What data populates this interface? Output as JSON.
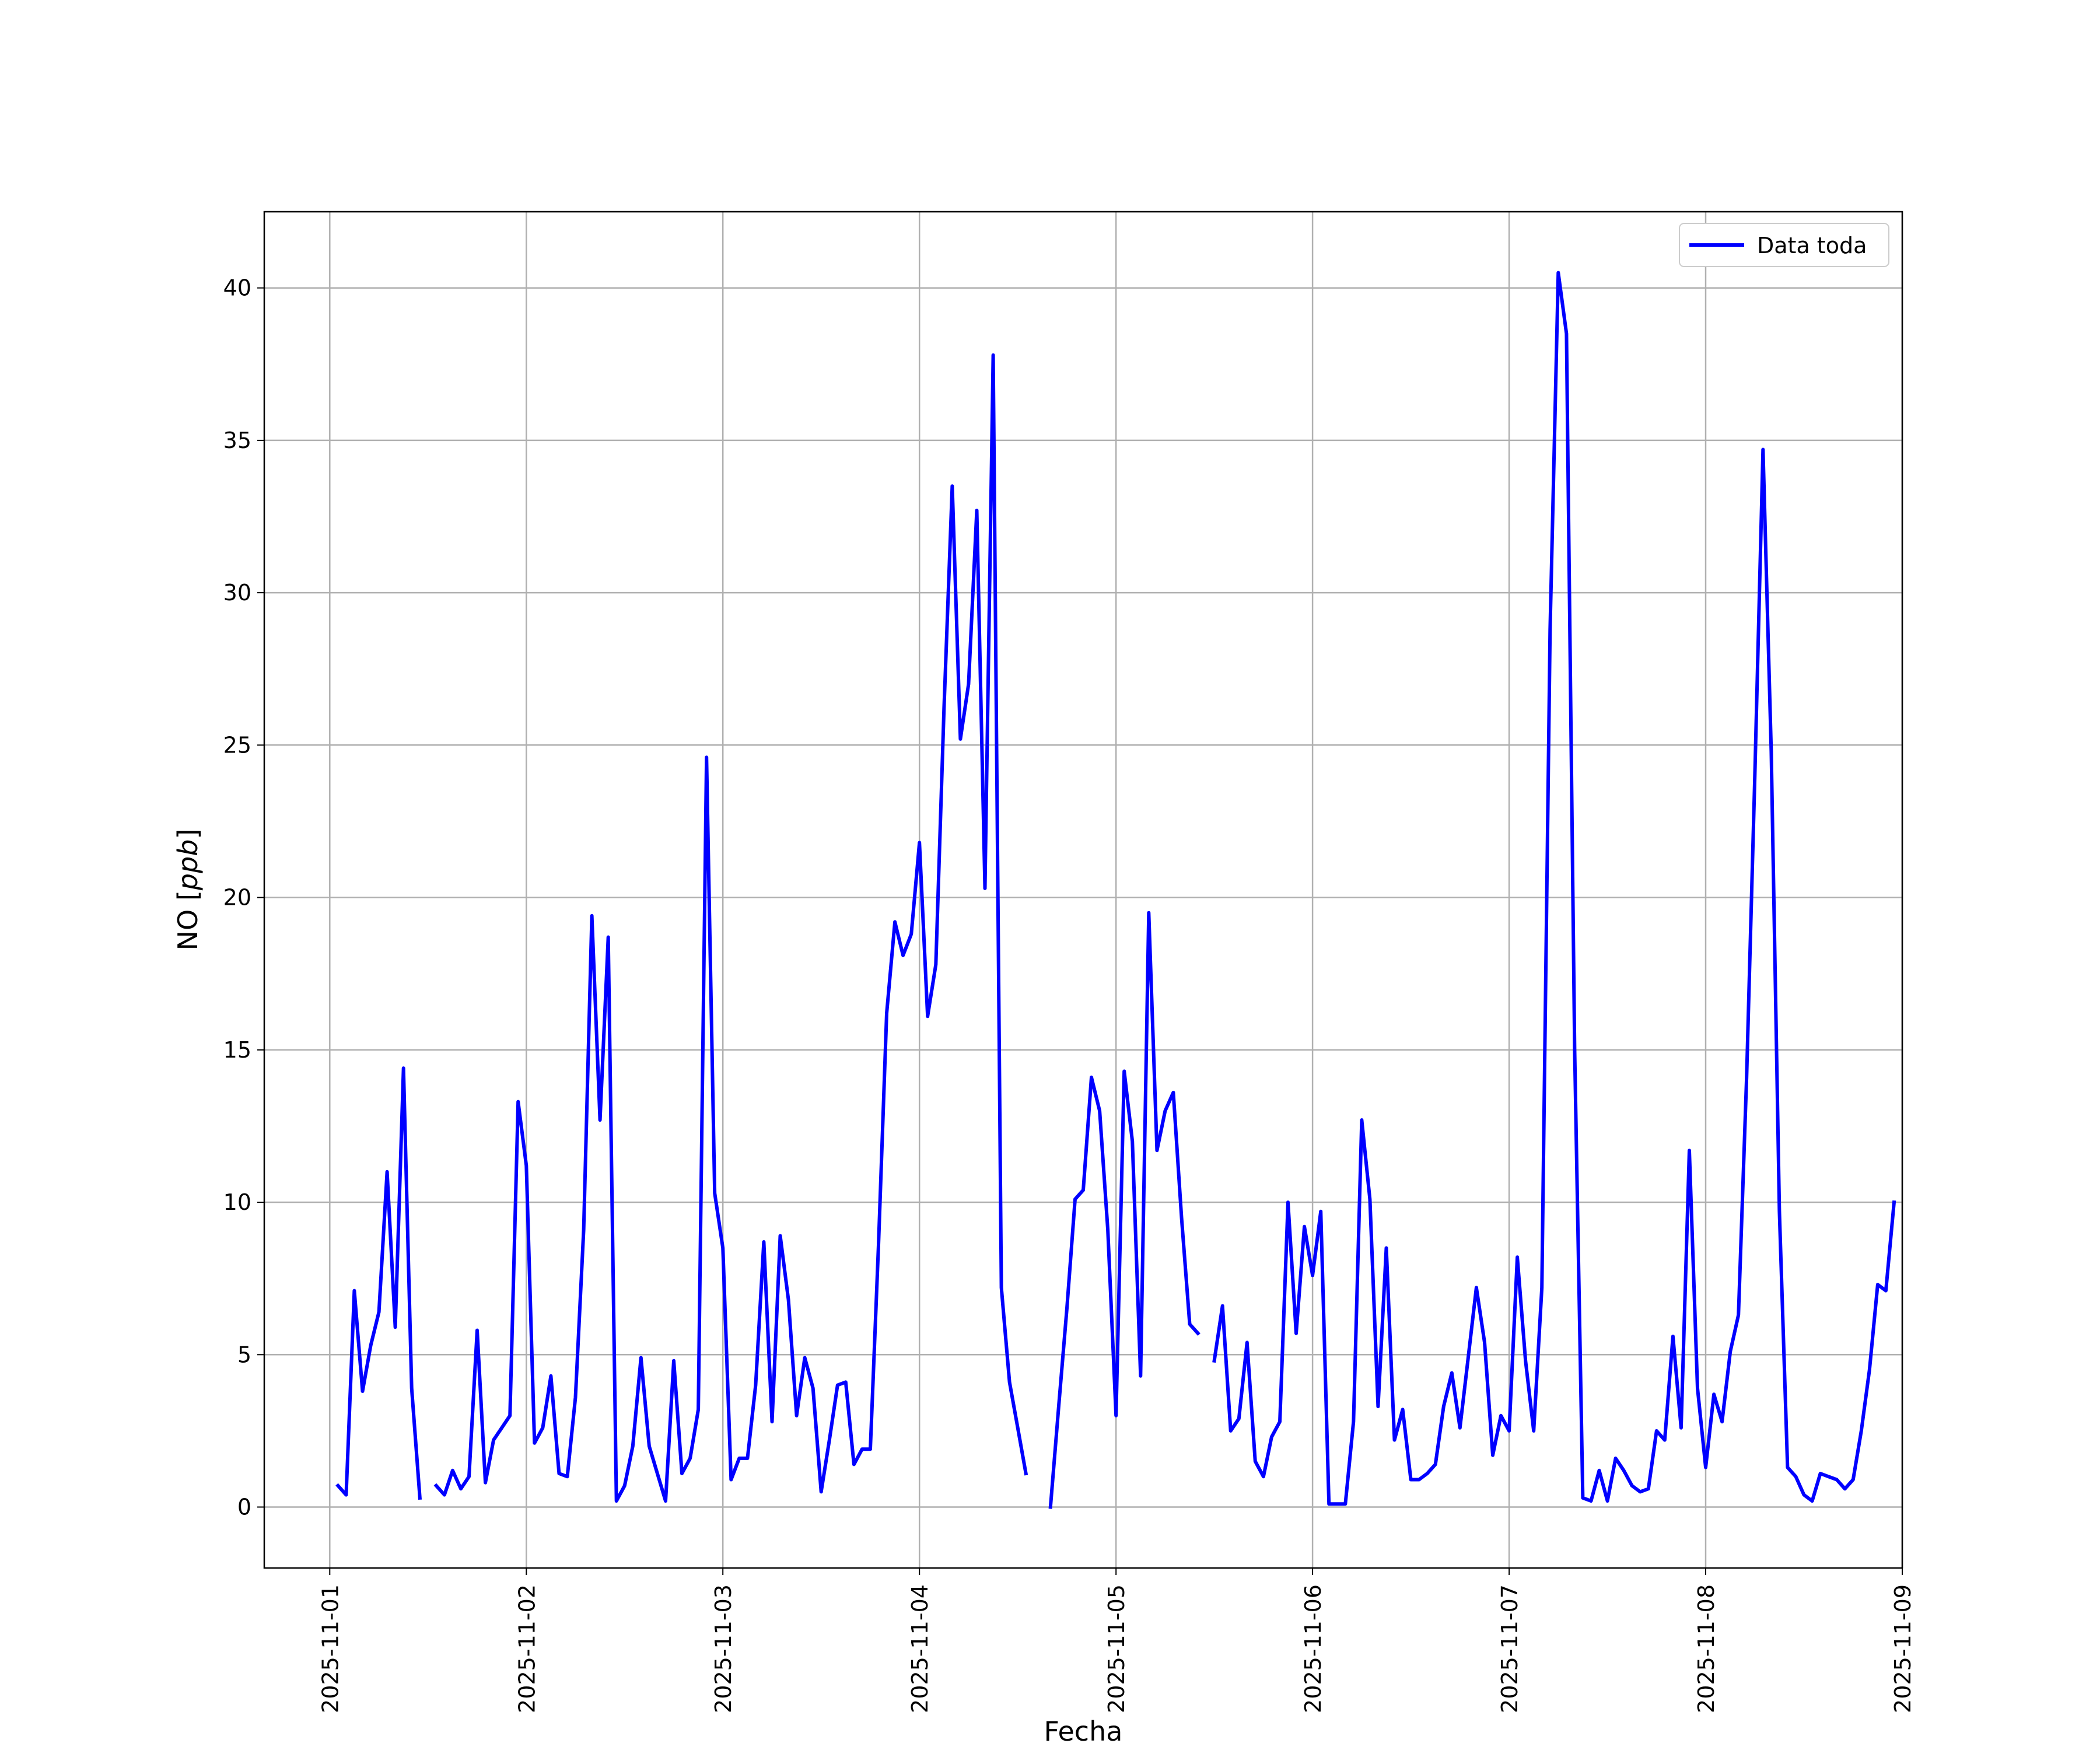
{
  "chart_data": {
    "type": "line",
    "title": "",
    "xlabel": "Fecha",
    "ylabel": "NO [ppb]",
    "ylabel_parts": {
      "plain": "NO [",
      "italic": "ppb",
      "close": "]"
    },
    "xlim": [
      "2025-10-31T16:00",
      "2025-11-09T00:00"
    ],
    "ylim": [
      -2,
      42.5
    ],
    "x_ticks": [
      "2025-11-01",
      "2025-11-02",
      "2025-11-03",
      "2025-11-04",
      "2025-11-05",
      "2025-11-06",
      "2025-11-07",
      "2025-11-08",
      "2025-11-09"
    ],
    "y_ticks": [
      0,
      5,
      10,
      15,
      20,
      25,
      30,
      35,
      40
    ],
    "y_tick_labels": [
      "0",
      "5",
      "10",
      "15",
      "20",
      "25",
      "30",
      "35",
      "40"
    ],
    "grid": true,
    "legend_position": "top-right",
    "colors": {
      "series": "#0000ff",
      "grid": "#b0b0b0",
      "frame": "#000000"
    },
    "series": [
      {
        "name": "Data toda",
        "segments": [
          [
            [
              "2025-11-01T01:00",
              0.7
            ],
            [
              "2025-11-01T02:00",
              0.4
            ],
            [
              "2025-11-01T03:00",
              7.1
            ],
            [
              "2025-11-01T04:00",
              3.8
            ],
            [
              "2025-11-01T05:00",
              5.3
            ],
            [
              "2025-11-01T06:00",
              6.4
            ],
            [
              "2025-11-01T07:00",
              11.0
            ],
            [
              "2025-11-01T08:00",
              5.9
            ],
            [
              "2025-11-01T09:00",
              14.4
            ],
            [
              "2025-11-01T10:00",
              3.9
            ],
            [
              "2025-11-01T11:00",
              0.3
            ]
          ],
          [
            [
              "2025-11-01T13:00",
              0.7
            ],
            [
              "2025-11-01T14:00",
              0.4
            ],
            [
              "2025-11-01T15:00",
              1.2
            ],
            [
              "2025-11-01T16:00",
              0.6
            ],
            [
              "2025-11-01T17:00",
              1.0
            ],
            [
              "2025-11-01T18:00",
              5.8
            ],
            [
              "2025-11-01T19:00",
              0.8
            ],
            [
              "2025-11-01T20:00",
              2.2
            ],
            [
              "2025-11-01T21:00",
              2.6
            ],
            [
              "2025-11-01T22:00",
              3.0
            ],
            [
              "2025-11-01T23:00",
              13.3
            ],
            [
              "2025-11-02T00:00",
              11.2
            ],
            [
              "2025-11-02T01:00",
              2.1
            ],
            [
              "2025-11-02T02:00",
              2.6
            ],
            [
              "2025-11-02T03:00",
              4.3
            ],
            [
              "2025-11-02T04:00",
              1.1
            ],
            [
              "2025-11-02T05:00",
              1.0
            ],
            [
              "2025-11-02T06:00",
              3.6
            ],
            [
              "2025-11-02T07:00",
              9.1
            ],
            [
              "2025-11-02T08:00",
              19.4
            ],
            [
              "2025-11-02T09:00",
              12.7
            ],
            [
              "2025-11-02T10:00",
              18.7
            ],
            [
              "2025-11-02T11:00",
              0.2
            ],
            [
              "2025-11-02T12:00",
              0.7
            ],
            [
              "2025-11-02T13:00",
              2.0
            ],
            [
              "2025-11-02T14:00",
              4.9
            ],
            [
              "2025-11-02T15:00",
              2.0
            ],
            [
              "2025-11-02T16:00",
              1.1
            ],
            [
              "2025-11-02T17:00",
              0.2
            ],
            [
              "2025-11-02T18:00",
              4.8
            ],
            [
              "2025-11-02T19:00",
              1.1
            ],
            [
              "2025-11-02T20:00",
              1.6
            ],
            [
              "2025-11-02T21:00",
              3.2
            ],
            [
              "2025-11-02T22:00",
              24.6
            ],
            [
              "2025-11-02T23:00",
              10.3
            ],
            [
              "2025-11-03T00:00",
              8.5
            ],
            [
              "2025-11-03T01:00",
              0.9
            ],
            [
              "2025-11-03T02:00",
              1.6
            ],
            [
              "2025-11-03T03:00",
              1.6
            ],
            [
              "2025-11-03T04:00",
              4.0
            ],
            [
              "2025-11-03T05:00",
              8.7
            ],
            [
              "2025-11-03T06:00",
              2.8
            ],
            [
              "2025-11-03T07:00",
              8.9
            ],
            [
              "2025-11-03T08:00",
              6.8
            ],
            [
              "2025-11-03T09:00",
              3.0
            ],
            [
              "2025-11-03T10:00",
              4.9
            ],
            [
              "2025-11-03T11:00",
              3.9
            ],
            [
              "2025-11-03T12:00",
              0.5
            ],
            [
              "2025-11-03T13:00",
              2.2
            ],
            [
              "2025-11-03T14:00",
              4.0
            ],
            [
              "2025-11-03T15:00",
              4.1
            ],
            [
              "2025-11-03T16:00",
              1.4
            ],
            [
              "2025-11-03T17:00",
              1.9
            ],
            [
              "2025-11-03T18:00",
              1.9
            ],
            [
              "2025-11-03T19:00",
              8.6
            ],
            [
              "2025-11-03T20:00",
              16.2
            ],
            [
              "2025-11-03T21:00",
              19.2
            ],
            [
              "2025-11-03T22:00",
              18.1
            ],
            [
              "2025-11-03T23:00",
              18.8
            ],
            [
              "2025-11-04T00:00",
              21.8
            ],
            [
              "2025-11-04T01:00",
              16.1
            ],
            [
              "2025-11-04T02:00",
              17.8
            ],
            [
              "2025-11-04T03:00",
              26.2
            ],
            [
              "2025-11-04T04:00",
              33.5
            ],
            [
              "2025-11-04T05:00",
              25.2
            ],
            [
              "2025-11-04T06:00",
              27.0
            ],
            [
              "2025-11-04T07:00",
              32.7
            ],
            [
              "2025-11-04T08:00",
              20.3
            ],
            [
              "2025-11-04T09:00",
              37.8
            ],
            [
              "2025-11-04T10:00",
              7.2
            ],
            [
              "2025-11-04T11:00",
              4.1
            ],
            [
              "2025-11-04T12:00",
              2.6
            ],
            [
              "2025-11-04T13:00",
              1.1
            ]
          ],
          [
            [
              "2025-11-04T16:00",
              0.0
            ],
            [
              "2025-11-04T17:00",
              3.3
            ],
            [
              "2025-11-04T18:00",
              6.5
            ],
            [
              "2025-11-04T19:00",
              10.1
            ],
            [
              "2025-11-04T20:00",
              10.4
            ],
            [
              "2025-11-04T21:00",
              14.1
            ],
            [
              "2025-11-04T22:00",
              13.0
            ],
            [
              "2025-11-04T23:00",
              9.1
            ],
            [
              "2025-11-05T00:00",
              3.0
            ],
            [
              "2025-11-05T01:00",
              14.3
            ],
            [
              "2025-11-05T02:00",
              12.0
            ],
            [
              "2025-11-05T03:00",
              4.3
            ],
            [
              "2025-11-05T04:00",
              19.5
            ],
            [
              "2025-11-05T05:00",
              11.7
            ],
            [
              "2025-11-05T06:00",
              13.0
            ],
            [
              "2025-11-05T07:00",
              13.6
            ],
            [
              "2025-11-05T08:00",
              9.5
            ],
            [
              "2025-11-05T09:00",
              6.0
            ],
            [
              "2025-11-05T10:00",
              5.7
            ]
          ],
          [
            [
              "2025-11-05T12:00",
              4.8
            ],
            [
              "2025-11-05T13:00",
              6.6
            ],
            [
              "2025-11-05T14:00",
              2.5
            ],
            [
              "2025-11-05T15:00",
              2.9
            ],
            [
              "2025-11-05T16:00",
              5.4
            ],
            [
              "2025-11-05T17:00",
              1.5
            ],
            [
              "2025-11-05T18:00",
              1.0
            ],
            [
              "2025-11-05T19:00",
              2.3
            ],
            [
              "2025-11-05T20:00",
              2.8
            ],
            [
              "2025-11-05T21:00",
              10.0
            ],
            [
              "2025-11-05T22:00",
              5.7
            ],
            [
              "2025-11-05T23:00",
              9.2
            ],
            [
              "2025-11-06T00:00",
              7.6
            ],
            [
              "2025-11-06T01:00",
              9.7
            ],
            [
              "2025-11-06T02:00",
              0.1
            ],
            [
              "2025-11-06T03:00",
              0.1
            ],
            [
              "2025-11-06T04:00",
              0.1
            ],
            [
              "2025-11-06T05:00",
              2.8
            ],
            [
              "2025-11-06T06:00",
              12.7
            ],
            [
              "2025-11-06T07:00",
              10.1
            ],
            [
              "2025-11-06T08:00",
              3.3
            ],
            [
              "2025-11-06T09:00",
              8.5
            ],
            [
              "2025-11-06T10:00",
              2.2
            ],
            [
              "2025-11-06T11:00",
              3.2
            ],
            [
              "2025-11-06T12:00",
              0.9
            ],
            [
              "2025-11-06T13:00",
              0.9
            ],
            [
              "2025-11-06T14:00",
              1.1
            ],
            [
              "2025-11-06T15:00",
              1.4
            ],
            [
              "2025-11-06T16:00",
              3.3
            ],
            [
              "2025-11-06T17:00",
              4.4
            ],
            [
              "2025-11-06T18:00",
              2.6
            ],
            [
              "2025-11-06T19:00",
              4.9
            ],
            [
              "2025-11-06T20:00",
              7.2
            ],
            [
              "2025-11-06T21:00",
              5.4
            ],
            [
              "2025-11-06T22:00",
              1.7
            ],
            [
              "2025-11-06T23:00",
              3.0
            ],
            [
              "2025-11-07T00:00",
              2.5
            ],
            [
              "2025-11-07T01:00",
              8.2
            ],
            [
              "2025-11-07T02:00",
              4.8
            ],
            [
              "2025-11-07T03:00",
              2.5
            ],
            [
              "2025-11-07T04:00",
              7.2
            ],
            [
              "2025-11-07T05:00",
              28.8
            ],
            [
              "2025-11-07T06:00",
              40.5
            ],
            [
              "2025-11-07T07:00",
              38.5
            ],
            [
              "2025-11-07T08:00",
              15.0
            ],
            [
              "2025-11-07T09:00",
              0.3
            ],
            [
              "2025-11-07T10:00",
              0.2
            ],
            [
              "2025-11-07T11:00",
              1.2
            ],
            [
              "2025-11-07T12:00",
              0.2
            ],
            [
              "2025-11-07T13:00",
              1.6
            ],
            [
              "2025-11-07T14:00",
              1.2
            ],
            [
              "2025-11-07T15:00",
              0.7
            ],
            [
              "2025-11-07T16:00",
              0.5
            ],
            [
              "2025-11-07T17:00",
              0.6
            ],
            [
              "2025-11-07T18:00",
              2.5
            ],
            [
              "2025-11-07T19:00",
              2.2
            ],
            [
              "2025-11-07T20:00",
              5.6
            ],
            [
              "2025-11-07T21:00",
              2.6
            ],
            [
              "2025-11-07T22:00",
              11.7
            ],
            [
              "2025-11-07T23:00",
              3.9
            ],
            [
              "2025-11-08T00:00",
              1.3
            ],
            [
              "2025-11-08T01:00",
              3.7
            ],
            [
              "2025-11-08T02:00",
              2.8
            ],
            [
              "2025-11-08T03:00",
              5.1
            ],
            [
              "2025-11-08T04:00",
              6.3
            ],
            [
              "2025-11-08T05:00",
              14.1
            ],
            [
              "2025-11-08T06:00",
              24.0
            ],
            [
              "2025-11-08T07:00",
              34.7
            ],
            [
              "2025-11-08T08:00",
              24.8
            ],
            [
              "2025-11-08T09:00",
              9.7
            ],
            [
              "2025-11-08T10:00",
              1.3
            ],
            [
              "2025-11-08T11:00",
              1.0
            ],
            [
              "2025-11-08T12:00",
              0.4
            ],
            [
              "2025-11-08T13:00",
              0.2
            ],
            [
              "2025-11-08T14:00",
              1.1
            ],
            [
              "2025-11-08T15:00",
              1.0
            ],
            [
              "2025-11-08T16:00",
              0.9
            ],
            [
              "2025-11-08T17:00",
              0.6
            ],
            [
              "2025-11-08T18:00",
              0.9
            ],
            [
              "2025-11-08T19:00",
              2.5
            ],
            [
              "2025-11-08T20:00",
              4.5
            ],
            [
              "2025-11-08T21:00",
              7.3
            ],
            [
              "2025-11-08T22:00",
              7.1
            ],
            [
              "2025-11-08T23:00",
              10.0
            ]
          ]
        ]
      }
    ]
  }
}
